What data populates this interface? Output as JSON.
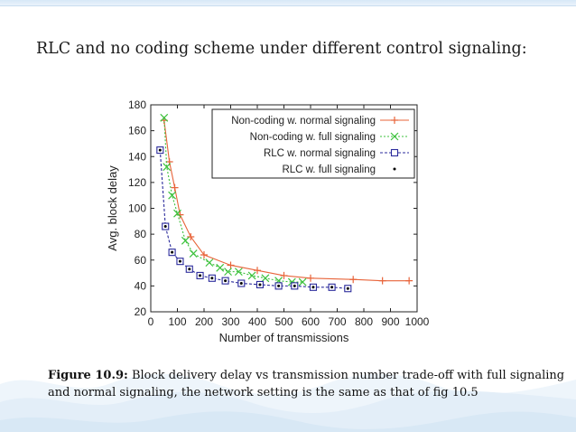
{
  "slide": {
    "title": "RLC and no coding scheme under different control signaling:"
  },
  "caption": {
    "label": "Figure 10.9:",
    "text": " Block delivery delay vs transmission number trade-off with full signaling and normal signaling, the network setting is the same as that of fig 10.5"
  },
  "colors": {
    "series1": "#e8643a",
    "series2": "#3cc13c",
    "series3": "#2b2b9c",
    "series4": "#000000",
    "wave": "#e3eef8"
  },
  "chart_data": {
    "type": "line",
    "xlabel": "Number of transmissions",
    "ylabel": "Avg. block delay",
    "xlim": [
      0,
      1000
    ],
    "ylim": [
      20,
      180
    ],
    "xticks": [
      0,
      100,
      200,
      300,
      400,
      500,
      600,
      700,
      800,
      900,
      1000
    ],
    "yticks": [
      20,
      40,
      60,
      80,
      100,
      120,
      140,
      160,
      180
    ],
    "legend_position": "top-right",
    "series": [
      {
        "name": "Non-coding w. normal signaling",
        "marker": "plus",
        "line": "solid",
        "x": [
          50,
          70,
          90,
          110,
          150,
          200,
          300,
          400,
          500,
          600,
          760,
          870,
          970
        ],
        "y": [
          168,
          136,
          116,
          95,
          78,
          64,
          56,
          52,
          48,
          46,
          45,
          44,
          44
        ]
      },
      {
        "name": "Non-coding w. full signaling",
        "marker": "x",
        "line": "dotted",
        "x": [
          50,
          60,
          80,
          100,
          130,
          160,
          220,
          260,
          290,
          330,
          380,
          430,
          480,
          530,
          570
        ],
        "y": [
          170,
          132,
          110,
          96,
          75,
          65,
          58,
          54,
          51,
          51,
          48,
          46,
          44,
          43,
          43
        ]
      },
      {
        "name": "RLC w. normal signaling",
        "marker": "square",
        "line": "dashed",
        "x": [
          35,
          55,
          80,
          110,
          145,
          185,
          230,
          280,
          340,
          410,
          480,
          540,
          610,
          680,
          740
        ],
        "y": [
          145,
          86,
          66,
          59,
          53,
          48,
          46,
          44,
          42,
          41,
          40,
          40,
          39,
          39,
          38
        ]
      },
      {
        "name": "RLC w. full signaling",
        "marker": "dot",
        "line": "none",
        "x": [
          35,
          55,
          80,
          110,
          145,
          185,
          230,
          280,
          340,
          410,
          480,
          540,
          610,
          680,
          740
        ],
        "y": [
          145,
          86,
          66,
          59,
          53,
          48,
          46,
          44,
          42,
          41,
          40,
          40,
          39,
          39,
          38
        ]
      }
    ]
  }
}
